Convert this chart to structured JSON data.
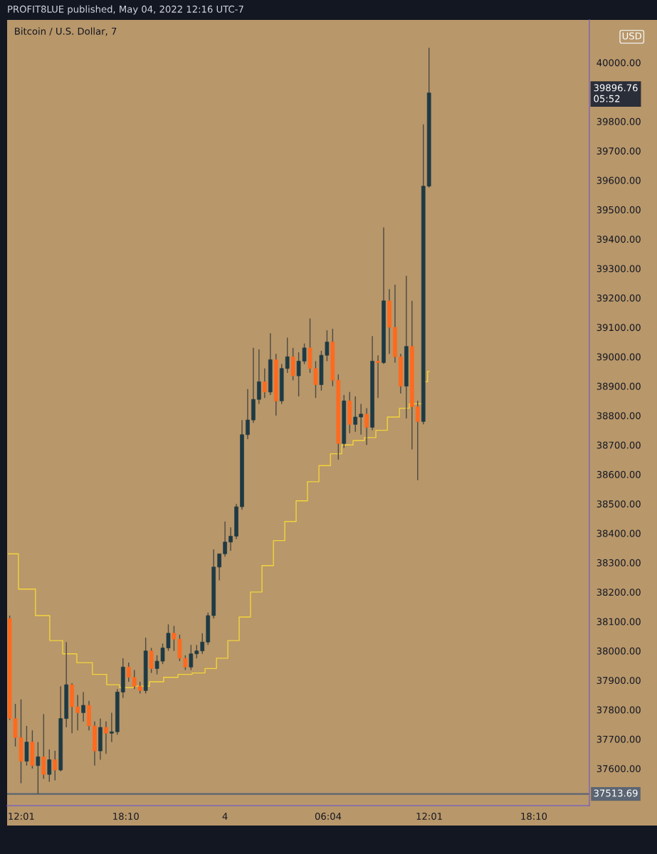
{
  "chart_data": {
    "type": "candlestick",
    "title": "Bitcoin / U.S. Dollar, 7",
    "ylabel": "USD",
    "annotations": [
      "PROFIT8LUE published, May 04, 2022 12:16 UTC-7",
      "39896.76\n05:52"
    ],
    "x": [
      "2022-05-03T11:20",
      "2022-05-03T11:40",
      "2022-05-03T12:00",
      "2022-05-03T12:20",
      "2022-05-03T12:40",
      "2022-05-03T13:00",
      "2022-05-03T13:20",
      "2022-05-03T13:40",
      "2022-05-03T14:00",
      "2022-05-03T14:20",
      "2022-05-03T14:40",
      "2022-05-03T15:00",
      "2022-05-03T15:20",
      "2022-05-03T15:40",
      "2022-05-03T16:00",
      "2022-05-03T16:20",
      "2022-05-03T16:40",
      "2022-05-03T17:00",
      "2022-05-03T17:20",
      "2022-05-03T17:40",
      "2022-05-03T18:00",
      "2022-05-03T18:20",
      "2022-05-03T18:40",
      "2022-05-03T19:00",
      "2022-05-03T19:20",
      "2022-05-03T19:40",
      "2022-05-03T20:00",
      "2022-05-03T20:20",
      "2022-05-03T20:40",
      "2022-05-03T21:00",
      "2022-05-03T21:20",
      "2022-05-03T21:40",
      "2022-05-03T22:00",
      "2022-05-03T22:20",
      "2022-05-03T22:40",
      "2022-05-03T23:00",
      "2022-05-03T23:20",
      "2022-05-03T23:40",
      "2022-05-04T00:00",
      "2022-05-04T00:20",
      "2022-05-04T00:40",
      "2022-05-04T01:00",
      "2022-05-04T01:20",
      "2022-05-04T01:40",
      "2022-05-04T02:00",
      "2022-05-04T02:20",
      "2022-05-04T02:40",
      "2022-05-04T03:00",
      "2022-05-04T03:20",
      "2022-05-04T03:40",
      "2022-05-04T04:00",
      "2022-05-04T04:20",
      "2022-05-04T04:40",
      "2022-05-04T05:00",
      "2022-05-04T05:20",
      "2022-05-04T05:40",
      "2022-05-04T06:00",
      "2022-05-04T06:20",
      "2022-05-04T06:40",
      "2022-05-04T07:00",
      "2022-05-04T07:20",
      "2022-05-04T07:40",
      "2022-05-04T08:00",
      "2022-05-04T08:20",
      "2022-05-04T08:40",
      "2022-05-04T09:00",
      "2022-05-04T09:20",
      "2022-05-04T09:40",
      "2022-05-04T10:00",
      "2022-05-04T10:20",
      "2022-05-04T10:40",
      "2022-05-04T11:00",
      "2022-05-04T11:20",
      "2022-05-04T11:40",
      "2022-05-04T12:00"
    ],
    "ohlc": [
      [
        38110,
        38120,
        37765,
        37770
      ],
      [
        37770,
        37820,
        37675,
        37705
      ],
      [
        37705,
        37835,
        37550,
        37625
      ],
      [
        37625,
        37745,
        37610,
        37690
      ],
      [
        37690,
        37730,
        37600,
        37610
      ],
      [
        37610,
        37690,
        37513.69,
        37640
      ],
      [
        37640,
        37785,
        37565,
        37580
      ],
      [
        37580,
        37665,
        37555,
        37630
      ],
      [
        37630,
        37660,
        37560,
        37595
      ],
      [
        37595,
        37880,
        37590,
        37770
      ],
      [
        37770,
        38030,
        37740,
        37885
      ],
      [
        37885,
        37890,
        37720,
        37810
      ],
      [
        37810,
        37850,
        37730,
        37790
      ],
      [
        37790,
        37860,
        37760,
        37815
      ],
      [
        37815,
        37830,
        37730,
        37745
      ],
      [
        37745,
        37760,
        37610,
        37660
      ],
      [
        37660,
        37770,
        37630,
        37740
      ],
      [
        37740,
        37760,
        37650,
        37720
      ],
      [
        37720,
        37790,
        37690,
        37725
      ],
      [
        37725,
        37870,
        37715,
        37860
      ],
      [
        37860,
        37975,
        37840,
        37945
      ],
      [
        37945,
        37960,
        37895,
        37910
      ],
      [
        37910,
        37935,
        37870,
        37880
      ],
      [
        37880,
        37895,
        37855,
        37865
      ],
      [
        37865,
        38045,
        37855,
        38000
      ],
      [
        38000,
        38010,
        37925,
        37940
      ],
      [
        37940,
        37985,
        37920,
        37965
      ],
      [
        37965,
        38025,
        37955,
        38010
      ],
      [
        38010,
        38090,
        38000,
        38060
      ],
      [
        38060,
        38085,
        38000,
        38040
      ],
      [
        38040,
        38055,
        37965,
        37975
      ],
      [
        37975,
        37985,
        37935,
        37945
      ],
      [
        37945,
        38020,
        37935,
        37990
      ],
      [
        37990,
        38020,
        37975,
        38000
      ],
      [
        38000,
        38060,
        37990,
        38030
      ],
      [
        38030,
        38130,
        38020,
        38120
      ],
      [
        38120,
        38345,
        38110,
        38285
      ],
      [
        38285,
        38330,
        38240,
        38330
      ],
      [
        38330,
        38440,
        38320,
        38370
      ],
      [
        38370,
        38420,
        38340,
        38390
      ],
      [
        38390,
        38500,
        38380,
        38490
      ],
      [
        38490,
        38785,
        38480,
        38735
      ],
      [
        38735,
        38890,
        38720,
        38785
      ],
      [
        38785,
        39030,
        38775,
        38855
      ],
      [
        38855,
        39025,
        38840,
        38915
      ],
      [
        38915,
        38960,
        38860,
        38880
      ],
      [
        38880,
        39080,
        38870,
        38990
      ],
      [
        38990,
        39010,
        38800,
        38850
      ],
      [
        38850,
        38975,
        38840,
        38960
      ],
      [
        38960,
        39065,
        38945,
        39000
      ],
      [
        39000,
        39030,
        38920,
        38935
      ],
      [
        38935,
        39015,
        38865,
        38985
      ],
      [
        38985,
        39045,
        38975,
        39030
      ],
      [
        39030,
        39130,
        38945,
        38960
      ],
      [
        38960,
        38985,
        38860,
        38905
      ],
      [
        38905,
        39020,
        38885,
        39005
      ],
      [
        39005,
        39090,
        38985,
        39050
      ],
      [
        39050,
        39095,
        38900,
        38920
      ],
      [
        38920,
        38940,
        38650,
        38705
      ],
      [
        38705,
        38870,
        38690,
        38850
      ],
      [
        38850,
        38880,
        38740,
        38770
      ],
      [
        38770,
        38865,
        38745,
        38795
      ],
      [
        38795,
        38840,
        38735,
        38805
      ],
      [
        38805,
        38825,
        38700,
        38760
      ],
      [
        38760,
        39070,
        38750,
        38985
      ],
      [
        38985,
        39005,
        38860,
        38980
      ],
      [
        38980,
        39440,
        38975,
        39190
      ],
      [
        39190,
        39230,
        39010,
        39100
      ],
      [
        39100,
        39245,
        38980,
        39000
      ],
      [
        39000,
        39010,
        38875,
        38900
      ],
      [
        38900,
        39275,
        38790,
        39035
      ],
      [
        39035,
        39190,
        38685,
        38830
      ],
      [
        38830,
        38850,
        38580,
        38780
      ],
      [
        38780,
        39790,
        38770,
        39580
      ],
      [
        39580,
        40050,
        39575,
        39896.76
      ]
    ],
    "colors": [
      "#ff6a1f",
      "#ff6a1f",
      "#ff6a1f",
      "#1e3a44",
      "#ff6a1f",
      "#1e3a44",
      "#ff6a1f",
      "#1e3a44",
      "#ff6a1f",
      "#1e3a44",
      "#1e3a44",
      "#ff6a1f",
      "#ff6a1f",
      "#1e3a44",
      "#ff6a1f",
      "#ff6a1f",
      "#1e3a44",
      "#ff6a1f",
      "#1e3a44",
      "#1e3a44",
      "#1e3a44",
      "#ff6a1f",
      "#ff6a1f",
      "#ff6a1f",
      "#1e3a44",
      "#ff6a1f",
      "#1e3a44",
      "#1e3a44",
      "#1e3a44",
      "#ff6a1f",
      "#ff6a1f",
      "#ff6a1f",
      "#1e3a44",
      "#1e3a44",
      "#1e3a44",
      "#1e3a44",
      "#1e3a44",
      "#1e3a44",
      "#1e3a44",
      "#1e3a44",
      "#1e3a44",
      "#1e3a44",
      "#1e3a44",
      "#1e3a44",
      "#1e3a44",
      "#ff6a1f",
      "#1e3a44",
      "#ff6a1f",
      "#1e3a44",
      "#1e3a44",
      "#ff6a1f",
      "#1e3a44",
      "#1e3a44",
      "#ff6a1f",
      "#ff6a1f",
      "#1e3a44",
      "#1e3a44",
      "#ff6a1f",
      "#ff6a1f",
      "#1e3a44",
      "#ff6a1f",
      "#1e3a44",
      "#1e3a44",
      "#ff6a1f",
      "#1e3a44",
      "#ff6a1f",
      "#1e3a44",
      "#ff6a1f",
      "#ff6a1f",
      "#ff6a1f",
      "#1e3a44",
      "#ff6a1f",
      "#ff6a1f",
      "#1e3a44",
      "#1e3a44"
    ],
    "series": [
      {
        "type": "step",
        "color": "#f2d43c",
        "x": [
          "2022-05-03T11:16",
          "2022-05-03T12:26",
          "2022-05-03T13:16",
          "2022-05-03T14:07",
          "2022-05-03T14:47",
          "2022-05-03T15:47",
          "2022-05-03T16:37",
          "2022-05-03T17:28",
          "2022-05-03T18:08",
          "2022-05-03T19:08",
          "2022-05-03T19:58",
          "2022-05-03T20:49",
          "2022-05-03T21:39",
          "2022-05-03T22:29",
          "2022-05-03T23:10",
          "2022-05-03T23:50",
          "2022-05-04T00:30",
          "2022-05-04T01:10",
          "2022-05-04T01:50",
          "2022-05-04T02:31",
          "2022-05-04T03:11",
          "2022-05-04T03:51",
          "2022-05-04T04:31",
          "2022-05-04T05:11",
          "2022-05-04T05:52",
          "2022-05-04T06:32",
          "2022-05-04T07:12",
          "2022-05-04T07:52",
          "2022-05-04T08:32",
          "2022-05-04T09:13",
          "2022-05-04T09:53",
          "2022-05-04T10:38",
          "2022-05-04T11:03",
          "2022-05-04T11:28",
          "2022-05-04T11:49",
          "2022-05-04T12:01"
        ],
        "values": [
          38330,
          38210,
          38120,
          38035,
          37990,
          37960,
          37920,
          37885,
          37875,
          37880,
          37895,
          37910,
          37920,
          37925,
          37940,
          37975,
          38035,
          38115,
          38200,
          38290,
          38375,
          38440,
          38510,
          38575,
          38630,
          38670,
          38700,
          38715,
          38725,
          38750,
          38795,
          38825,
          38840,
          38840,
          38915,
          38950
        ]
      }
    ],
    "xlim": [
      "2022-05-03T11:11",
      "2022-05-04T21:26"
    ],
    "ylim": [
      37474,
      40145
    ],
    "xticks": [
      {
        "value": "2022-05-03T12:01",
        "label": "12:01"
      },
      {
        "value": "2022-05-03T18:10",
        "label": "18:10"
      },
      {
        "value": "2022-05-04T00:00",
        "label": "4"
      },
      {
        "value": "2022-05-04T06:04",
        "label": "06:04"
      },
      {
        "value": "2022-05-04T12:01",
        "label": "12:01"
      },
      {
        "value": "2022-05-04T18:10",
        "label": "18:10"
      }
    ],
    "yticks": [
      {
        "value": 37600,
        "label": "37600.00"
      },
      {
        "value": 37700,
        "label": "37700.00"
      },
      {
        "value": 37800,
        "label": "37800.00"
      },
      {
        "value": 37900,
        "label": "37900.00"
      },
      {
        "value": 38000,
        "label": "38000.00"
      },
      {
        "value": 38100,
        "label": "38100.00"
      },
      {
        "value": 38200,
        "label": "38200.00"
      },
      {
        "value": 38300,
        "label": "38300.00"
      },
      {
        "value": 38400,
        "label": "38400.00"
      },
      {
        "value": 38500,
        "label": "38500.00"
      },
      {
        "value": 38600,
        "label": "38600.00"
      },
      {
        "value": 38700,
        "label": "38700.00"
      },
      {
        "value": 38800,
        "label": "38800.00"
      },
      {
        "value": 38900,
        "label": "38900.00"
      },
      {
        "value": 39000,
        "label": "39000.00"
      },
      {
        "value": 39100,
        "label": "39100.00"
      },
      {
        "value": 39200,
        "label": "39200.00"
      },
      {
        "value": 39300,
        "label": "39300.00"
      },
      {
        "value": 39400,
        "label": "39400.00"
      },
      {
        "value": 39500,
        "label": "39500.00"
      },
      {
        "value": 39600,
        "label": "39600.00"
      },
      {
        "value": 39700,
        "label": "39700.00"
      },
      {
        "value": 39800,
        "label": "39800.00"
      },
      {
        "value": 40000,
        "label": "40000.00"
      }
    ],
    "ref_lines": [
      {
        "axis": "y",
        "value": 37513.69,
        "label": "37513.69",
        "color": "#5b6573"
      }
    ]
  }
}
